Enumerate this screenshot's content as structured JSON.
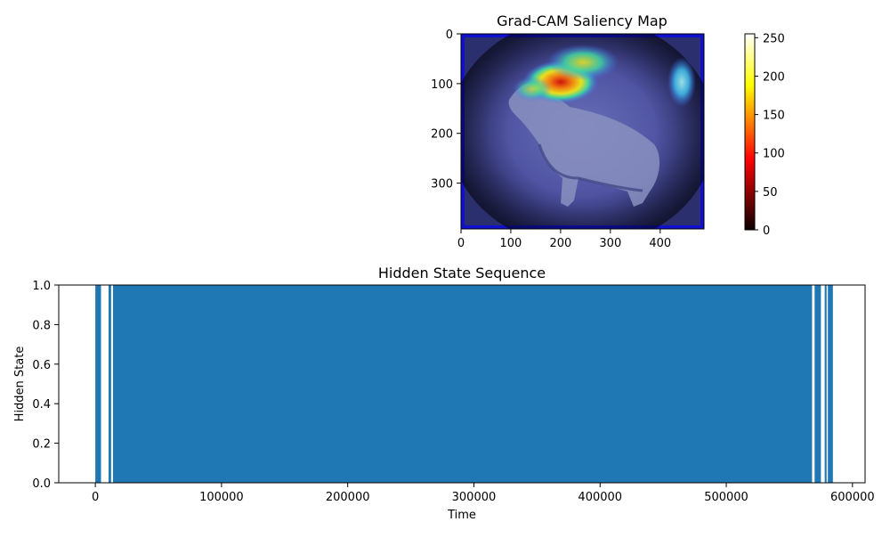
{
  "chart_data": [
    {
      "type": "heatmap",
      "title": "Grad-CAM Saliency Map",
      "xlabel": "",
      "ylabel": "",
      "xlim": [
        0,
        488
      ],
      "ylim": [
        392,
        0
      ],
      "xticks": [
        0,
        100,
        200,
        300,
        400
      ],
      "yticks": [
        0,
        100,
        200,
        300
      ],
      "colorbar": {
        "colormap": "hot",
        "range": [
          0,
          255
        ],
        "ticks": [
          0,
          50,
          100,
          150,
          200,
          250
        ]
      },
      "overlay_colormap": "jet",
      "image_subject": "dog",
      "hotspots": [
        {
          "x": 205,
          "y": 100,
          "value": 255
        },
        {
          "x": 240,
          "y": 55,
          "value": 170
        },
        {
          "x": 160,
          "y": 110,
          "value": 120
        },
        {
          "x": 450,
          "y": 100,
          "value": 95
        }
      ]
    },
    {
      "type": "bar",
      "title": "Hidden State Sequence",
      "xlabel": "Time",
      "ylabel": "Hidden State",
      "xlim": [
        -29000,
        610000
      ],
      "ylim": [
        0,
        1
      ],
      "xticks": [
        0,
        100000,
        200000,
        300000,
        400000,
        500000,
        600000
      ],
      "yticks": [
        0.0,
        0.2,
        0.4,
        0.6,
        0.8,
        1.0
      ],
      "state_1_intervals": [
        [
          0,
          4500
        ],
        [
          10500,
          12500
        ],
        [
          14000,
          568000
        ],
        [
          570000,
          575000
        ],
        [
          578000,
          579500
        ],
        [
          580500,
          584500
        ]
      ]
    }
  ],
  "colors": {
    "bar": "#1f77b4",
    "axes": "#000000",
    "background": "#ffffff"
  }
}
